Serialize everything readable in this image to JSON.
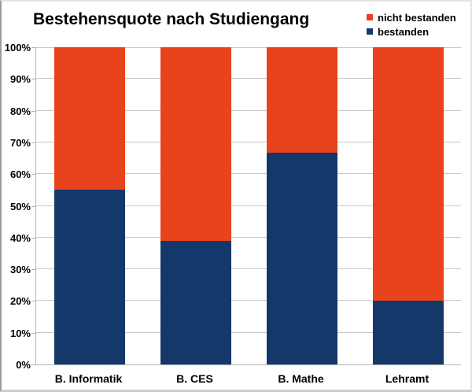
{
  "chart_data": {
    "type": "bar",
    "stacked": true,
    "title": "Bestehensquote nach Studiengang",
    "categories": [
      "B. Informatik",
      "B. CES",
      "B. Mathe",
      "Lehramt"
    ],
    "series": [
      {
        "name": "bestanden",
        "color": "#15386B",
        "values": [
          55,
          39,
          66.7,
          20
        ]
      },
      {
        "name": "nicht bestanden",
        "color": "#E8431C",
        "values": [
          45,
          61,
          33.3,
          80
        ]
      }
    ],
    "legend": [
      {
        "label": "nicht bestanden",
        "color": "#E8431C"
      },
      {
        "label": "bestanden",
        "color": "#15386B"
      }
    ],
    "ylabel": "",
    "xlabel": "",
    "ylim": [
      0,
      100
    ],
    "ytick_step": 10,
    "ytick_suffix": "%",
    "grid": true,
    "legend_position": "top-right"
  }
}
